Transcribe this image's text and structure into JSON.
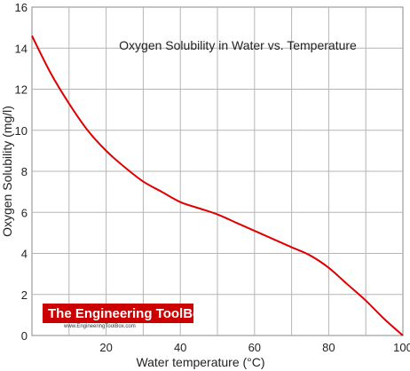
{
  "chart_data": {
    "type": "line",
    "title": "Oxygen Solubility in Water vs. Temperature",
    "xlabel": "Water temperature (°C)",
    "ylabel": "Oxygen Solubility (mg/l)",
    "xlim": [
      0,
      100
    ],
    "ylim": [
      0,
      16
    ],
    "x_ticks": [
      20,
      40,
      60,
      80,
      100
    ],
    "y_ticks": [
      0,
      2,
      4,
      6,
      8,
      10,
      12,
      14,
      16
    ],
    "grid": true,
    "series": [
      {
        "color": "#e00000",
        "x": [
          0,
          5,
          10,
          15,
          20,
          25,
          30,
          35,
          40,
          45,
          50,
          55,
          60,
          65,
          70,
          75,
          80,
          85,
          90,
          95,
          100
        ],
        "y": [
          14.6,
          12.8,
          11.3,
          10.0,
          9.0,
          8.2,
          7.5,
          7.0,
          6.5,
          6.2,
          5.9,
          5.5,
          5.1,
          4.7,
          4.3,
          3.9,
          3.3,
          2.5,
          1.7,
          0.8,
          0.0
        ]
      }
    ]
  },
  "watermark": {
    "brand": "The Engineering ToolBox",
    "url": "www.EngineeringToolBox.com",
    "brand_color": "#cc0000"
  }
}
